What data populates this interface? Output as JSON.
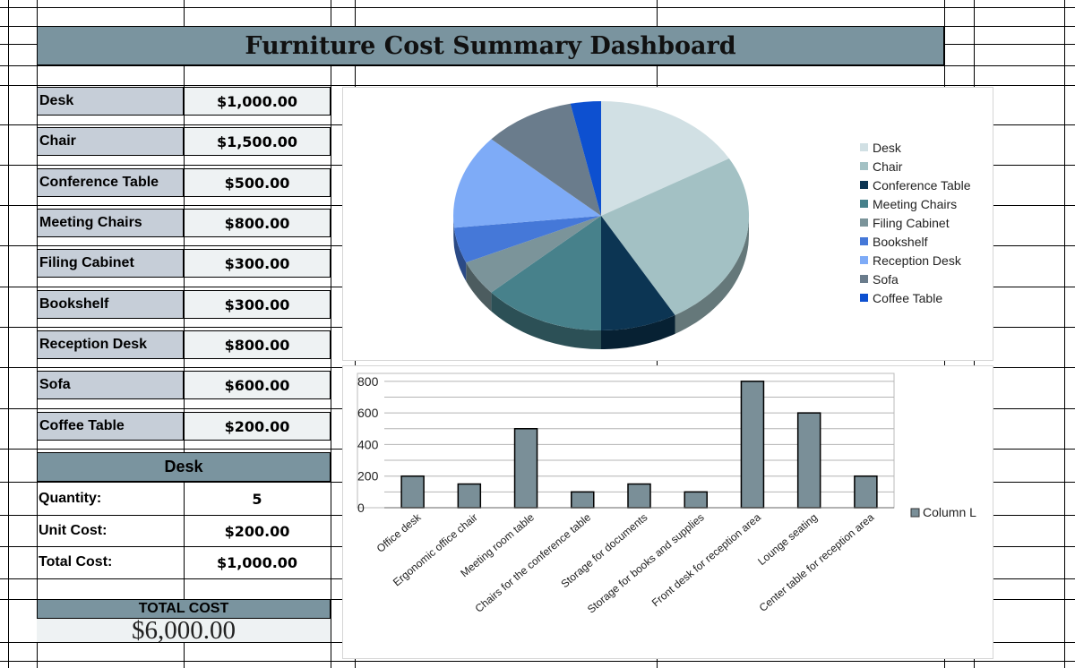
{
  "dashboard": {
    "title": "Furniture Cost Summary Dashboard"
  },
  "categories": [
    {
      "label": "Desk",
      "value": "$1,000.00"
    },
    {
      "label": "Chair",
      "value": "$1,500.00"
    },
    {
      "label": "Conference Table",
      "value": "$500.00"
    },
    {
      "label": "Meeting Chairs",
      "value": "$800.00"
    },
    {
      "label": "Filing Cabinet",
      "value": "$300.00"
    },
    {
      "label": "Bookshelf",
      "value": "$300.00"
    },
    {
      "label": "Reception Desk",
      "value": "$800.00"
    },
    {
      "label": "Sofa",
      "value": "$600.00"
    },
    {
      "label": "Coffee Table",
      "value": "$200.00"
    }
  ],
  "detail": {
    "heading": "Desk",
    "quantity_label": "Quantity:",
    "quantity_value": "5",
    "unit_cost_label": "Unit Cost:",
    "unit_cost_value": "$200.00",
    "total_cost_label": "Total Cost:",
    "total_cost_value": "$1,000.00"
  },
  "total": {
    "label": "TOTAL COST",
    "value": "$6,000.00"
  },
  "chart_data": [
    {
      "type": "pie",
      "style": "3d",
      "labels": [
        "Desk",
        "Chair",
        "Conference Table",
        "Meeting Chairs",
        "Filing Cabinet",
        "Bookshelf",
        "Reception Desk",
        "Sofa",
        "Coffee Table"
      ],
      "values": [
        1000,
        1500,
        500,
        800,
        300,
        300,
        800,
        600,
        200
      ],
      "colors": [
        "#d1e0e4",
        "#a3c1c4",
        "#0c3553",
        "#47818b",
        "#7b949a",
        "#4578d8",
        "#7eabf7",
        "#6a7c8c",
        "#0d50d0"
      ],
      "legend": "right"
    },
    {
      "type": "bar",
      "categories": [
        "Office desk",
        "Ergonomic office chair",
        "Meeting room table",
        "Chairs for the conference table",
        "Storage for documents",
        "Storage for books and supplies",
        "Front desk for reception area",
        "Lounge seating",
        "Center table for reception area"
      ],
      "series": [
        {
          "name": "Column L",
          "values": [
            200,
            150,
            500,
            100,
            150,
            100,
            800,
            600,
            200
          ]
        }
      ],
      "yticks": [
        "0",
        "200",
        "400",
        "600",
        "800"
      ],
      "ylim": [
        0,
        850
      ],
      "bar_color": "#7a8f98",
      "grid": true,
      "legend": "right"
    }
  ]
}
